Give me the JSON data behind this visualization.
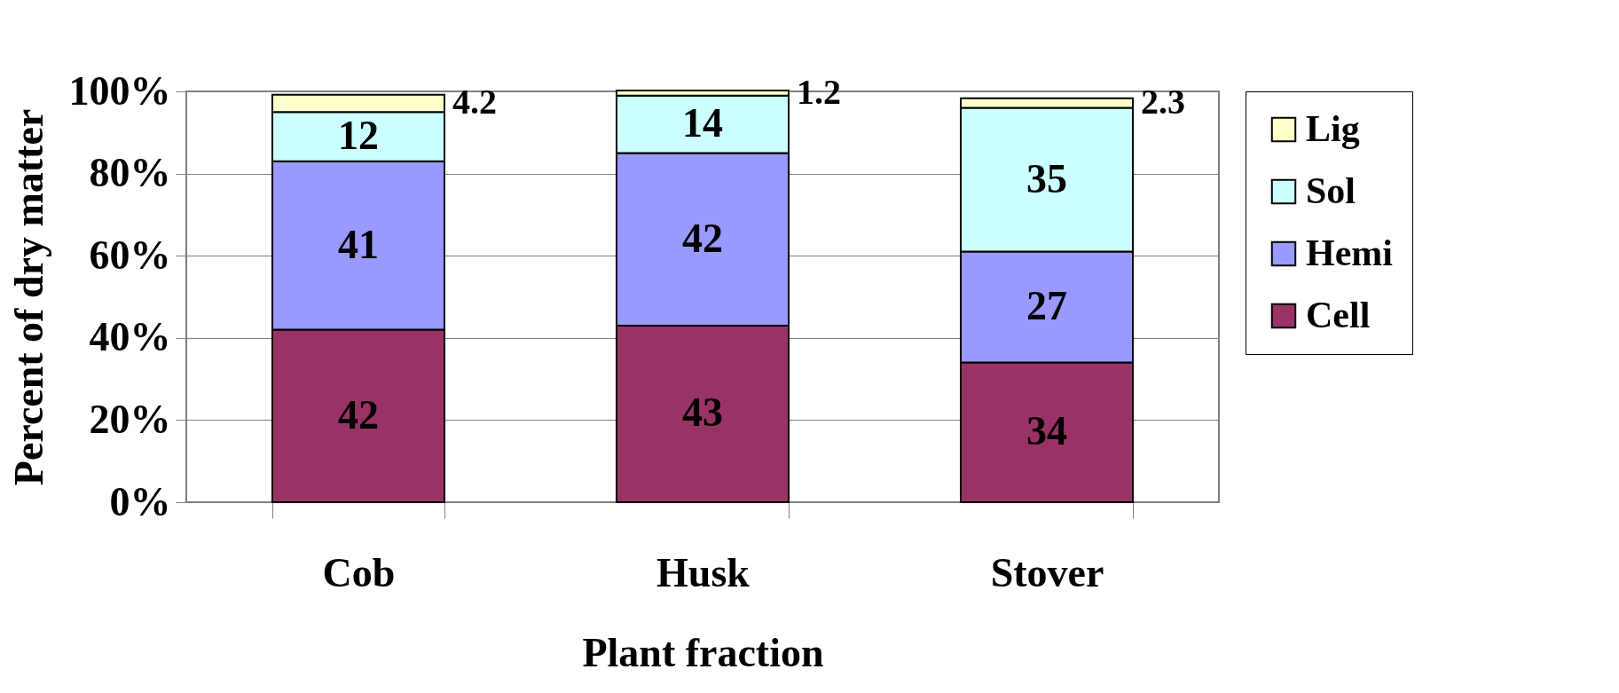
{
  "chart_data": {
    "type": "bar",
    "stacked": true,
    "xlabel": "Plant fraction",
    "ylabel": "Percent of dry matter",
    "categories": [
      "Cob",
      "Husk",
      "Stover"
    ],
    "series": [
      {
        "name": "Cell",
        "color": "#993366",
        "values": [
          42,
          43,
          34
        ]
      },
      {
        "name": "Hemi",
        "color": "#9999ff",
        "values": [
          41,
          42,
          27
        ]
      },
      {
        "name": "Sol",
        "color": "#ccffff",
        "values": [
          12,
          14,
          35
        ]
      },
      {
        "name": "Lig",
        "color": "#ffffcc",
        "values": [
          4.2,
          1.2,
          2.3
        ]
      }
    ],
    "ylim": [
      0,
      100
    ],
    "yticks": [
      {
        "value": 0,
        "label": "0%"
      },
      {
        "value": 20,
        "label": "20%"
      },
      {
        "value": 40,
        "label": "40%"
      },
      {
        "value": 60,
        "label": "60%"
      },
      {
        "value": 80,
        "label": "80%"
      },
      {
        "value": 100,
        "label": "100%"
      }
    ],
    "grid": "y",
    "legend": "right",
    "data_labels": true
  }
}
